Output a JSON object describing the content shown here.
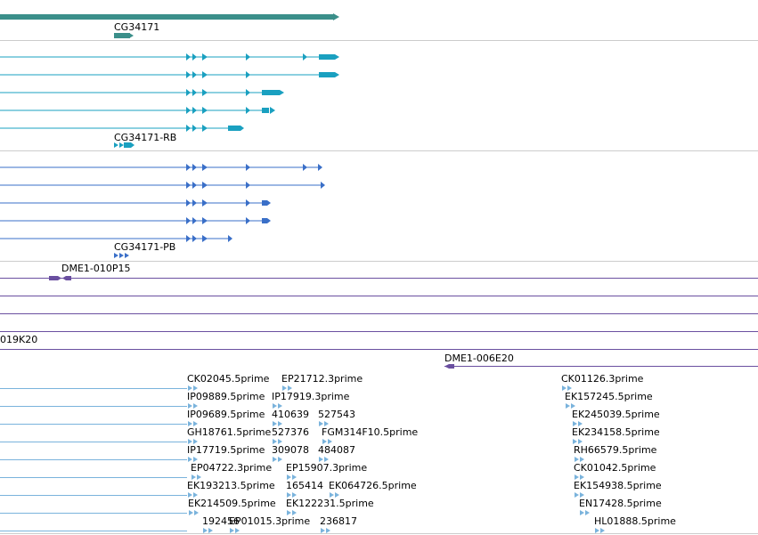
{
  "colors": {
    "gene": "#3b8f8a",
    "transcript": "#1aa0c0",
    "protein": "#3a6fc8",
    "clone": "#6a4fa0",
    "est": "#7ab3dc",
    "separator": "#cccccc"
  },
  "gene_track": {
    "label": "CG34171"
  },
  "transcript_track": {
    "label": "CG34171-RB"
  },
  "protein_track": {
    "label": "CG34171-PB"
  },
  "clone_track": {
    "labels": [
      "DME1-010P15",
      "019K20",
      "DME1-006E20"
    ]
  },
  "est_track": {
    "rows": [
      [
        "CK02045.5prime",
        "EP21712.3prime",
        "CK01126.3prime"
      ],
      [
        "IP09889.5prime",
        "IP17919.3prime",
        "EK157245.5prime"
      ],
      [
        "IP09689.5prime",
        "410639",
        "527543",
        "EK245039.5prime"
      ],
      [
        "GH18761.5prime",
        "527376",
        "FGM314F10.5prime",
        "EK234158.5prime"
      ],
      [
        "IP17719.5prime",
        "309078",
        "484087",
        "RH66579.5prime"
      ],
      [
        "EP04722.3prime",
        "EP15907.3prime",
        "CK01042.5prime"
      ],
      [
        "EK193213.5prime",
        "165414",
        "EK064726.5prime",
        "EK154938.5prime"
      ],
      [
        "EK214509.5prime",
        "EK122231.5prime",
        "EN17428.5prime"
      ],
      [
        "192456",
        "EP01015.3prime",
        "236817",
        "HL01888.5prime"
      ]
    ]
  }
}
